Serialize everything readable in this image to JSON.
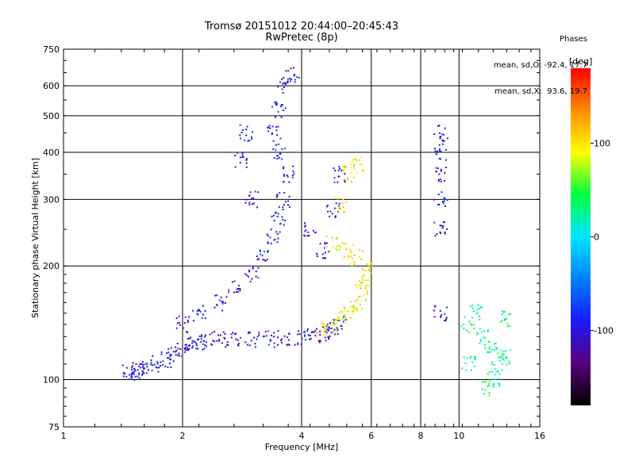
{
  "header": {
    "title_line1": "Tromsø 20151012 20:44:00–20:45:43",
    "title_line2": "RwPretec (8p)"
  },
  "phases_box": {
    "heading": "Phases",
    "o_line": "mean, sd,O: -92.4, 17.7",
    "x_line": "mean, sd,X:  93.6, 19.7"
  },
  "colorbar": {
    "label": "[deg]",
    "ticks": [
      100,
      0,
      -100
    ],
    "range": [
      -180,
      180
    ],
    "colors": [
      "#000000",
      "#5a007a",
      "#1a1aff",
      "#0080ff",
      "#00e5ff",
      "#00ff40",
      "#ffff00",
      "#ff8c00",
      "#ff0000"
    ]
  },
  "chart_data": {
    "type": "scatter",
    "title": "Tromsø 20151012 20:44:00–20:45:43",
    "subtitle": "RwPretec (8p)",
    "xlabel": "Frequency [MHz]",
    "ylabel": "Stationary phase Virtual Height [km]",
    "xscale": "log",
    "yscale": "log",
    "xlim": [
      1,
      16
    ],
    "ylim": [
      75,
      750
    ],
    "xticks": [
      1,
      2,
      4,
      6,
      8,
      10,
      16
    ],
    "yticks": [
      75,
      100,
      200,
      300,
      400,
      500,
      600,
      750
    ],
    "grid_x": [
      2,
      4,
      6,
      8,
      10
    ],
    "grid_y": [
      100,
      200,
      300,
      400,
      500,
      600
    ],
    "color_variable": "phase [deg]",
    "clusters": [
      {
        "note": "O-mode low trace",
        "points": [
          [
            1.45,
            105
          ],
          [
            1.5,
            104
          ],
          [
            1.55,
            106
          ],
          [
            1.6,
            108
          ],
          [
            1.7,
            110
          ],
          [
            1.8,
            113
          ],
          [
            1.9,
            117
          ],
          [
            2.0,
            121
          ],
          [
            2.1,
            124
          ],
          [
            2.2,
            126
          ],
          [
            2.3,
            127
          ],
          [
            2.5,
            128
          ],
          [
            2.7,
            128
          ],
          [
            3.0,
            128
          ],
          [
            3.3,
            128
          ],
          [
            3.6,
            129
          ],
          [
            4.0,
            130
          ],
          [
            4.3,
            131
          ],
          [
            4.6,
            133
          ],
          [
            4.8,
            136
          ],
          [
            5.0,
            140
          ]
        ],
        "phase": -100
      },
      {
        "note": "O-mode spread",
        "points": [
          [
            2.0,
            140
          ],
          [
            2.2,
            150
          ],
          [
            2.5,
            160
          ],
          [
            2.7,
            175
          ],
          [
            3.0,
            190
          ],
          [
            3.2,
            210
          ],
          [
            3.4,
            240
          ],
          [
            3.5,
            270
          ],
          [
            3.6,
            300
          ],
          [
            3.7,
            350
          ],
          [
            3.5,
            400
          ],
          [
            3.4,
            450
          ],
          [
            3.5,
            520
          ],
          [
            3.6,
            600
          ],
          [
            3.8,
            640
          ],
          [
            4.2,
            250
          ],
          [
            4.5,
            220
          ],
          [
            4.8,
            280
          ],
          [
            5.0,
            350
          ],
          [
            2.8,
            380
          ],
          [
            2.9,
            450
          ],
          [
            3.0,
            300
          ]
        ],
        "phase": -95
      },
      {
        "note": "X-mode trace",
        "points": [
          [
            4.5,
            135
          ],
          [
            4.8,
            140
          ],
          [
            5.0,
            145
          ],
          [
            5.3,
            150
          ],
          [
            5.5,
            160
          ],
          [
            5.7,
            170
          ],
          [
            5.8,
            185
          ],
          [
            5.9,
            195
          ],
          [
            5.5,
            210
          ],
          [
            5.2,
            220
          ],
          [
            4.8,
            230
          ],
          [
            5.0,
            290
          ],
          [
            5.3,
            350
          ],
          [
            5.5,
            370
          ]
        ],
        "phase": 95
      },
      {
        "note": "High-frequency echoes",
        "points": [
          [
            10.5,
            140
          ],
          [
            11,
            150
          ],
          [
            11.5,
            130
          ],
          [
            12,
            120
          ],
          [
            12.5,
            110
          ],
          [
            13,
            115
          ],
          [
            13.2,
            145
          ],
          [
            10.6,
            110
          ],
          [
            12.2,
            100
          ],
          [
            11.8,
            95
          ]
        ],
        "phase": 30
      },
      {
        "note": "Vertical line ~9 MHz",
        "points": [
          [
            9,
            450
          ],
          [
            9,
            400
          ],
          [
            9,
            350
          ],
          [
            9,
            300
          ],
          [
            9,
            250
          ],
          [
            9,
            150
          ]
        ],
        "phase": -100
      }
    ]
  }
}
